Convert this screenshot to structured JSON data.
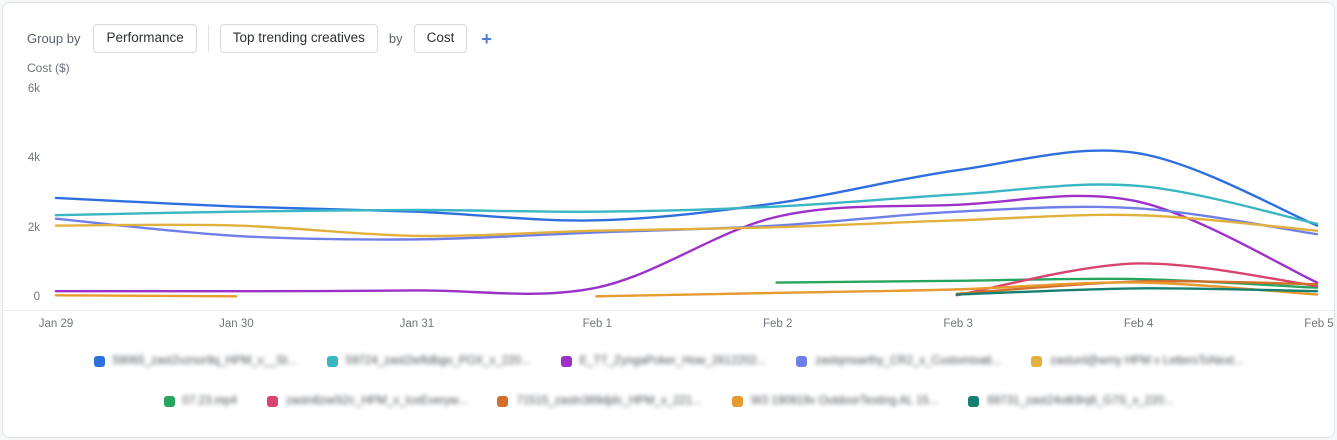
{
  "header": {
    "group_by_label": "Group by",
    "group_value": "Performance",
    "metric_prefix": "Top trending creatives",
    "by_label": "by",
    "metric_value": "Cost",
    "add_button": "+",
    "accent_color": "#4a7cd6"
  },
  "chart_data": {
    "type": "line",
    "title": "Cost ($)",
    "ylabel": "Cost ($)",
    "xlabel": "",
    "grid": false,
    "legend_position": "bottom",
    "legend_rows": [
      5,
      5
    ],
    "ylim": [
      0,
      6000
    ],
    "y_ticks": [
      {
        "label": "6k",
        "value": 6000
      },
      {
        "label": "4k",
        "value": 4000
      },
      {
        "label": "2k",
        "value": 2000
      },
      {
        "label": "0",
        "value": 0
      }
    ],
    "x": [
      "Jan 29",
      "Jan 30",
      "Jan 31",
      "Feb 1",
      "Feb 2",
      "Feb 3",
      "Feb 4",
      "Feb 5"
    ],
    "series": [
      {
        "name": "59065_zast2vznor9q_HPM_v__St...",
        "color": "#2e6fe0",
        "values": [
          2900,
          2650,
          2500,
          2250,
          2750,
          3700,
          4200,
          2100
        ]
      },
      {
        "name": "59724_zast2ieftdbgo_POX_x_220...",
        "color": "#39b6c3",
        "values": [
          2400,
          2500,
          2550,
          2500,
          2650,
          3000,
          3250,
          2150
        ]
      },
      {
        "name": "E_TT_ZyngaPoker_How_2612202...",
        "color": "#9c30c9",
        "values": [
          200,
          200,
          220,
          300,
          2350,
          2700,
          2800,
          450
        ]
      },
      {
        "name": "zastqmsarthy_CR2_x_Customisati...",
        "color": "#6f7fe8",
        "values": [
          2300,
          1800,
          1700,
          1900,
          2100,
          2500,
          2600,
          1850
        ]
      },
      {
        "name": "zastunl@wmy HPM v LettersToNext...",
        "color": "#e2b13d",
        "values": [
          2100,
          2100,
          1800,
          1950,
          2050,
          2250,
          2400,
          1950
        ]
      },
      {
        "name": "07.23.mp4",
        "color": "#27a55f",
        "values": [
          null,
          null,
          null,
          null,
          450,
          500,
          550,
          300
        ]
      },
      {
        "name": "zastn8zw0i2c_HPM_x_IceEveryw...",
        "color": "#d9436c",
        "values": [
          null,
          null,
          null,
          null,
          null,
          80,
          1000,
          350
        ]
      },
      {
        "name": "71515_zastn389djdc_HPM_x_221...",
        "color": "#d36f2b",
        "values": [
          null,
          null,
          null,
          null,
          null,
          120,
          480,
          400
        ]
      },
      {
        "name": "W3 190919v OutdoorTexting AL 15...",
        "color": "#e79a30",
        "values": [
          80,
          50,
          null,
          50,
          150,
          250,
          450,
          100
        ]
      },
      {
        "name": "69731_zast24otk9nj6_G7S_x_220...",
        "color": "#15806f",
        "values": [
          null,
          null,
          null,
          null,
          null,
          100,
          280,
          200
        ]
      }
    ]
  }
}
